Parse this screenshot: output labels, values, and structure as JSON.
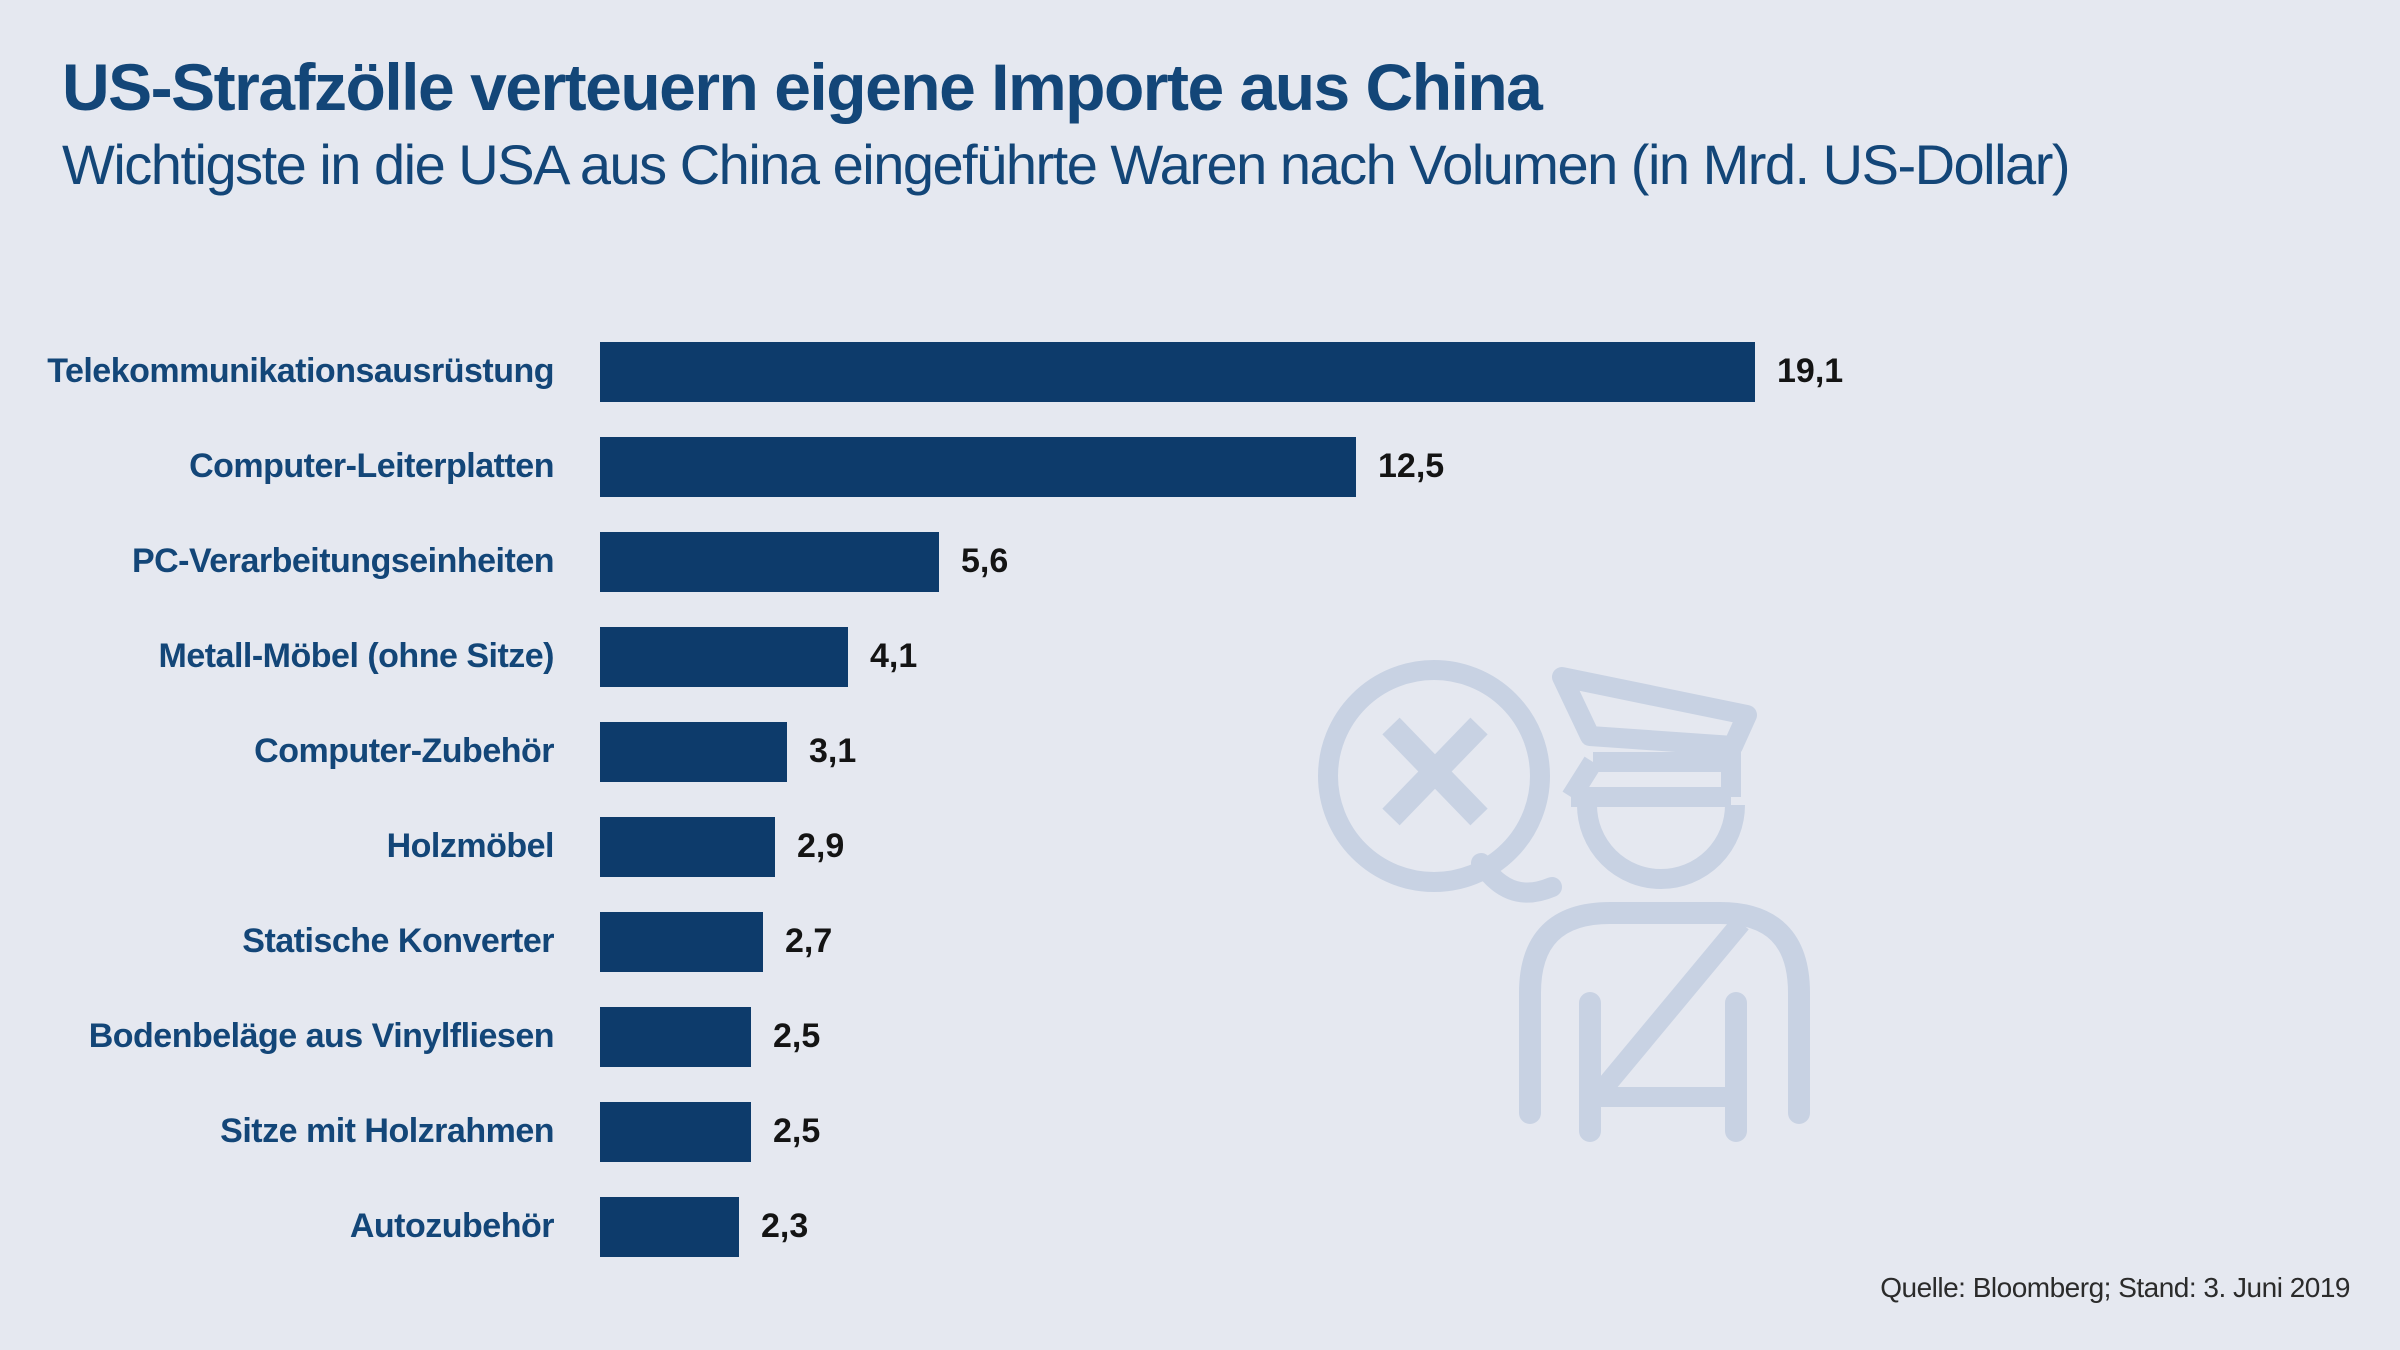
{
  "page": {
    "background_color": "#e5e8f0"
  },
  "header": {
    "title": "US-Strafzölle verteuern eigene Importe aus China",
    "subtitle": "Wichtigste in die USA aus China eingeführte Waren nach Volumen (in Mrd. US-Dollar)"
  },
  "source_note": "Quelle: Bloomberg; Stand: 3. Juni 2019",
  "watermark": {
    "icon": "customs-officer-with-speech-bubble-x-icon",
    "color": "#c8d2e3"
  },
  "chart_data": {
    "type": "bar",
    "orientation": "horizontal",
    "title": "US-Strafzölle verteuern eigene Importe aus China",
    "subtitle": "Wichtigste in die USA aus China eingeführte Waren nach Volumen (in Mrd. US-Dollar)",
    "unit": "Mrd. US-Dollar",
    "categories": [
      "Telekommunikationsausrüstung",
      "Computer-Leiterplatten",
      "PC-Verarbeitungseinheiten",
      "Metall-Möbel (ohne Sitze)",
      "Computer-Zubehör",
      "Holzmöbel",
      "Statische Konverter",
      "Bodenbeläge aus Vinylfliesen",
      "Sitze mit Holzrahmen",
      "Autozubehör"
    ],
    "values": [
      19.1,
      12.5,
      5.6,
      4.1,
      3.1,
      2.9,
      2.7,
      2.5,
      2.5,
      2.3
    ],
    "value_labels": [
      "19,1",
      "12,5",
      "5,6",
      "4,1",
      "3,1",
      "2,9",
      "2,7",
      "2,5",
      "2,5",
      "2,3"
    ],
    "xlim": [
      0,
      19.1
    ],
    "grid": false,
    "legend": false,
    "bar_color": "#0d3b6b",
    "category_label_color": "#134678",
    "value_label_color": "#141414"
  }
}
